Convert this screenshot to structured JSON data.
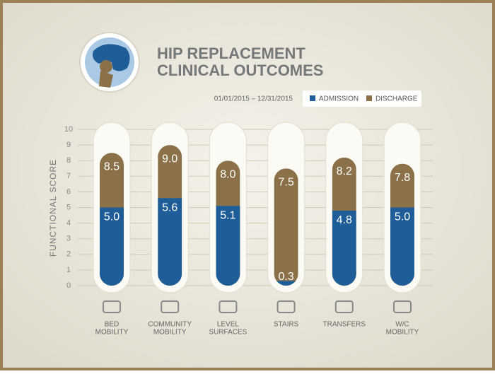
{
  "chart_data": {
    "type": "bar",
    "title": [
      "HIP REPLACEMENT",
      "CLINICAL OUTCOMES"
    ],
    "subtitle": "01/01/2015 – 12/31/2015",
    "y_label": "FUNCTIONAL SCORE",
    "categories": [
      [
        "BED",
        "MOBILITY"
      ],
      [
        "COMMUNITY",
        "MOBILITY"
      ],
      [
        "LEVEL",
        "SURFACES"
      ],
      [
        "STAIRS"
      ],
      [
        "TRANSFERS"
      ],
      [
        "W/C",
        "MOBILITY"
      ]
    ],
    "series": [
      {
        "name": "ADMISSION",
        "color": "#1f5d99",
        "values": [
          5.0,
          5.6,
          5.1,
          0.3,
          4.8,
          5.0
        ],
        "value_labels": [
          "5.0",
          "5.6",
          "5.1",
          "0.3",
          "4.8",
          "5.0"
        ]
      },
      {
        "name": "DISCHARGE",
        "color": "#8b7148",
        "values": [
          8.5,
          9.0,
          8.0,
          7.5,
          8.2,
          7.8
        ],
        "value_labels": [
          "8.5",
          "9.0",
          "8.0",
          "7.5",
          "8.2",
          "7.8"
        ]
      }
    ],
    "ylim": [
      0,
      10
    ],
    "yticks": [
      0,
      1,
      2,
      3,
      4,
      5,
      6,
      7,
      8,
      9,
      10
    ],
    "grid": true
  }
}
